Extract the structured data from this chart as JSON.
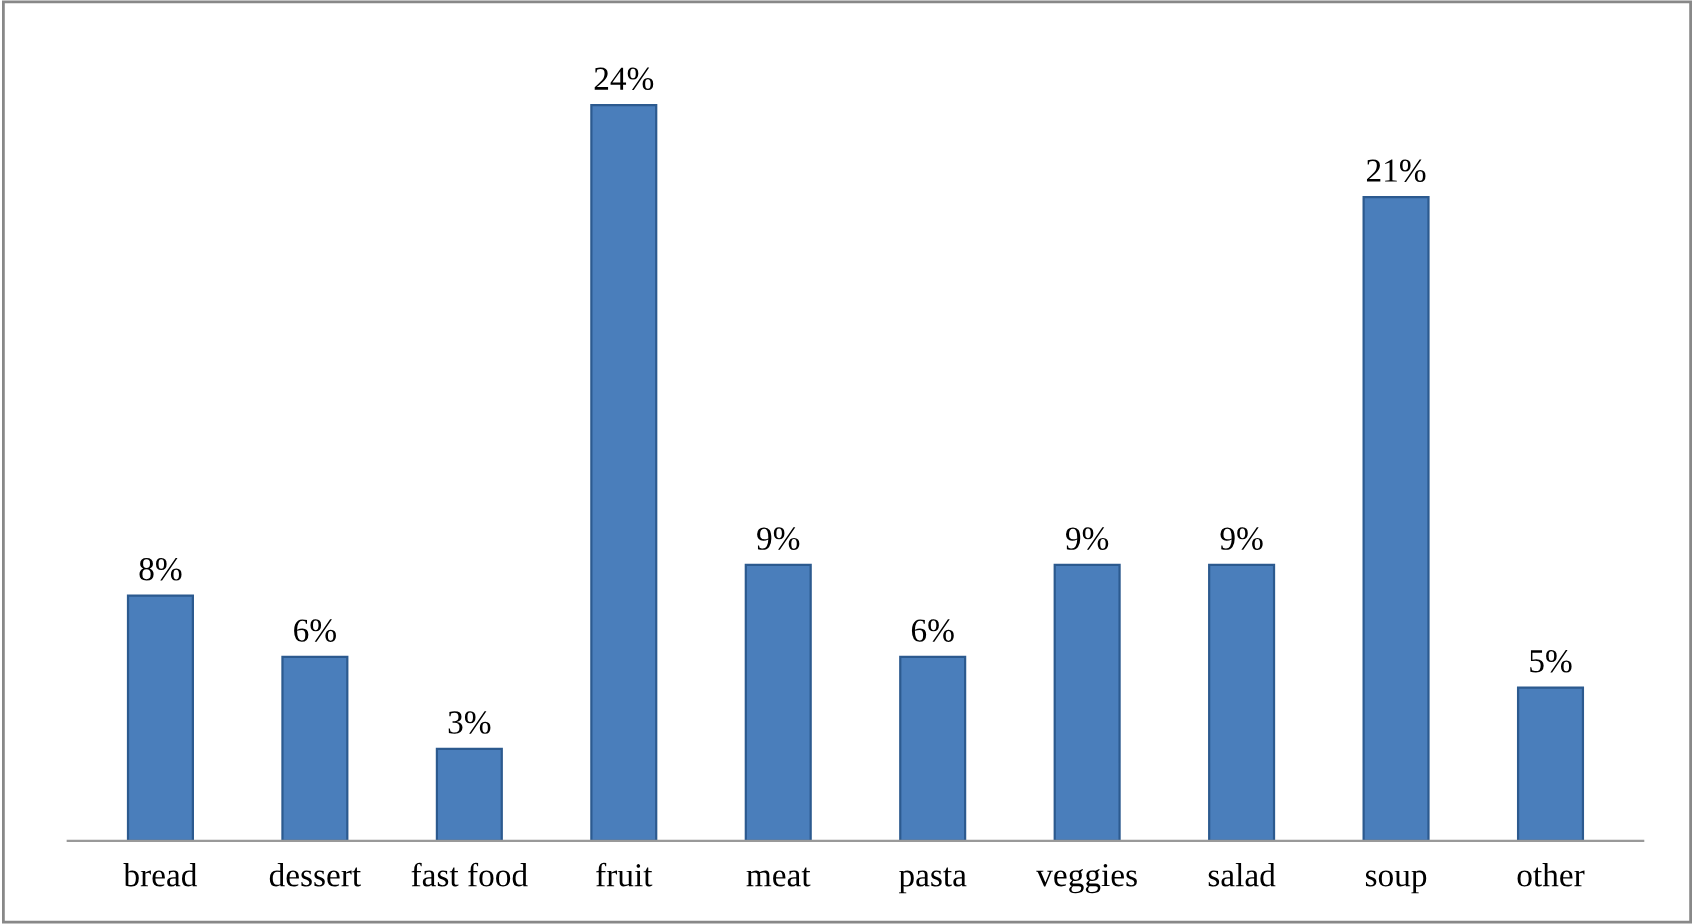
{
  "chart_data": {
    "type": "bar",
    "categories": [
      "bread",
      "dessert",
      "fast food",
      "fruit",
      "meat",
      "pasta",
      "veggies",
      "salad",
      "soup",
      "other"
    ],
    "values": [
      8,
      6,
      3,
      24,
      9,
      6,
      9,
      9,
      21,
      5
    ],
    "value_labels": [
      "8%",
      "6%",
      "3%",
      "24%",
      "9%",
      "6%",
      "9%",
      "9%",
      "21%",
      "5%"
    ],
    "color": "#4a7ebb",
    "grid": false,
    "legend": false
  }
}
